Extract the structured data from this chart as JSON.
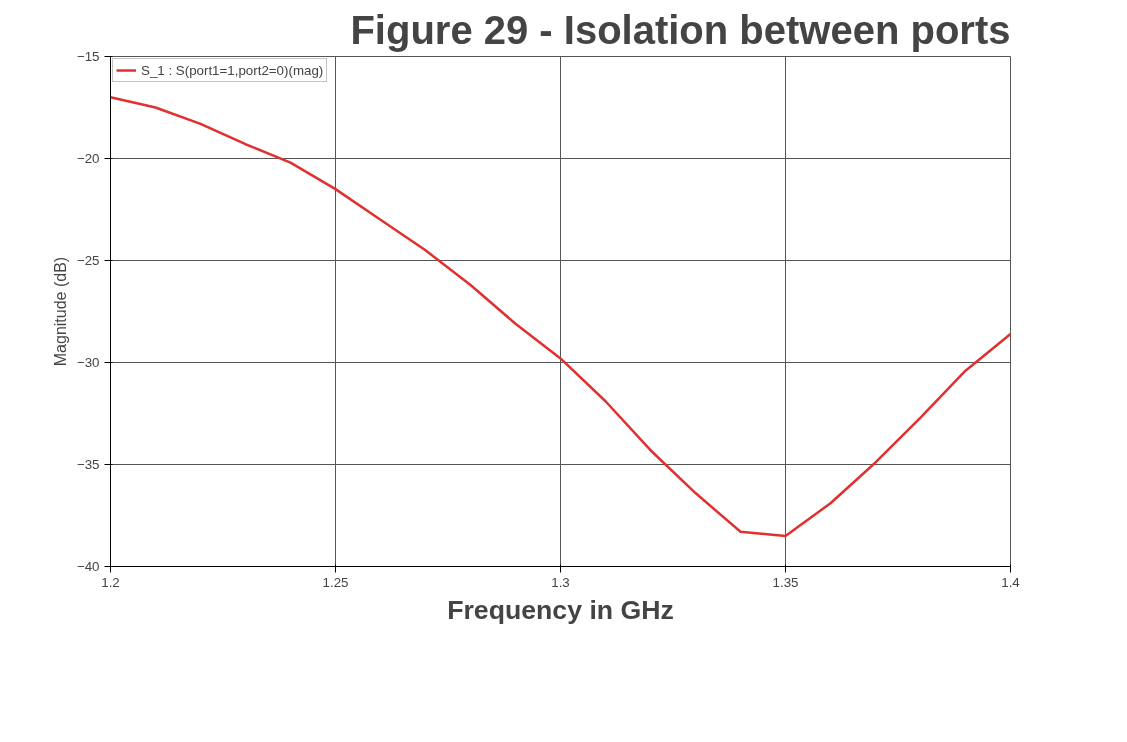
{
  "chart_data": {
    "type": "line",
    "title": "Figure 29 - Isolation between ports",
    "xlabel": "Frequency in GHz",
    "ylabel": "Magnitude (dB)",
    "x": [
      1.2,
      1.21,
      1.22,
      1.23,
      1.24,
      1.25,
      1.26,
      1.27,
      1.28,
      1.29,
      1.3,
      1.31,
      1.32,
      1.33,
      1.34,
      1.35,
      1.36,
      1.37,
      1.38,
      1.39,
      1.4
    ],
    "series": [
      {
        "name": "S_1 : S(port1=1,port2=0)(mag)",
        "color": "#e03030",
        "values": [
          -17,
          -17.5,
          -18.3,
          -19.3,
          -20.2,
          -21.5,
          -23,
          -24.5,
          -26.2,
          -28.1,
          -29.8,
          -31.9,
          -34.3,
          -36.4,
          -38.3,
          -38.5,
          -36.9,
          -34.9,
          -32.7,
          -30.4,
          -28.6
        ]
      }
    ],
    "xlim": [
      1.2,
      1.4
    ],
    "xticks": [
      1.2,
      1.25,
      1.3,
      1.35,
      1.4
    ],
    "ylim": [
      -40,
      -15
    ],
    "yticks": [
      -40,
      -35,
      -30,
      -25,
      -20,
      -15
    ],
    "grid": true,
    "legend": "top left",
    "marker": "none",
    "line_style": "solid"
  }
}
